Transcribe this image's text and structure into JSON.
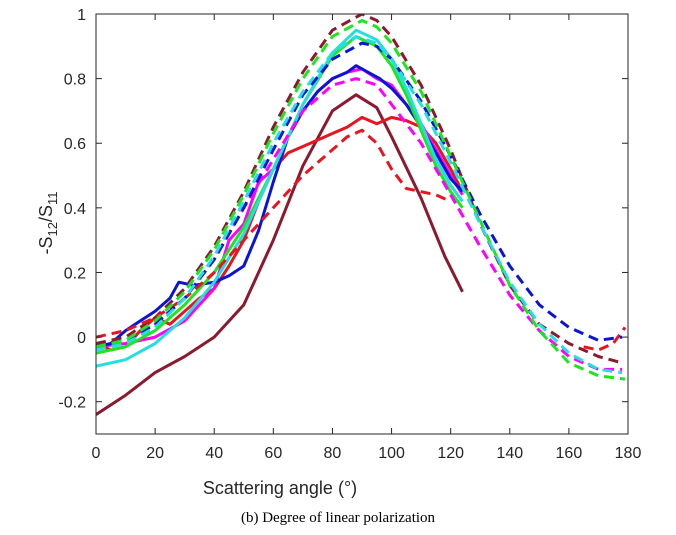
{
  "caption": "(b)    Degree of linear polarization",
  "chart_data": {
    "type": "line",
    "xlabel": "Scattering angle (°)",
    "ylabel": "-S12/S11",
    "xlim": [
      0,
      180
    ],
    "ylim": [
      -0.3,
      1.0
    ],
    "xticks": [
      0,
      20,
      40,
      60,
      80,
      100,
      120,
      140,
      160,
      180
    ],
    "yticks": [
      -0.2,
      0,
      0.2,
      0.4,
      0.6,
      0.8,
      1
    ],
    "grid": false,
    "series": [
      {
        "color": "#8b1a2e",
        "dash": false,
        "x": [
          0,
          10,
          20,
          30,
          40,
          50,
          60,
          70,
          80,
          88,
          95,
          100,
          110,
          118,
          124
        ],
        "y": [
          -0.24,
          -0.18,
          -0.11,
          -0.06,
          0.0,
          0.1,
          0.3,
          0.53,
          0.7,
          0.75,
          0.71,
          0.62,
          0.43,
          0.25,
          0.14
        ]
      },
      {
        "color": "#e8141e",
        "dash": false,
        "x": [
          0,
          5,
          10,
          15,
          20,
          25,
          30,
          35,
          40,
          45,
          50,
          55,
          60,
          65,
          70,
          75,
          80,
          85,
          90,
          95,
          100,
          105,
          110,
          115,
          120,
          124
        ],
        "y": [
          -0.02,
          -0.04,
          -0.03,
          0.02,
          0.06,
          0.04,
          0.08,
          0.12,
          0.15,
          0.22,
          0.3,
          0.42,
          0.52,
          0.57,
          0.59,
          0.61,
          0.63,
          0.65,
          0.68,
          0.66,
          0.68,
          0.67,
          0.65,
          0.6,
          0.52,
          0.45
        ]
      },
      {
        "color": "#ff00ff",
        "dash": false,
        "x": [
          0,
          10,
          20,
          30,
          40,
          45,
          50,
          55,
          60,
          65,
          70,
          75,
          80,
          85,
          90,
          95,
          100,
          105,
          110,
          115,
          120,
          124
        ],
        "y": [
          -0.03,
          -0.02,
          0.0,
          0.05,
          0.15,
          0.3,
          0.35,
          0.48,
          0.52,
          0.62,
          0.7,
          0.76,
          0.8,
          0.82,
          0.83,
          0.8,
          0.78,
          0.72,
          0.66,
          0.58,
          0.5,
          0.44
        ]
      },
      {
        "color": "#0a14d9",
        "dash": false,
        "x": [
          0,
          5,
          10,
          15,
          20,
          25,
          28,
          33,
          40,
          45,
          50,
          55,
          60,
          65,
          70,
          75,
          80,
          85,
          88,
          92,
          96,
          100,
          105,
          110,
          115,
          120,
          124
        ],
        "y": [
          -0.03,
          -0.02,
          0.02,
          0.05,
          0.08,
          0.12,
          0.17,
          0.16,
          0.17,
          0.19,
          0.22,
          0.33,
          0.48,
          0.62,
          0.7,
          0.76,
          0.8,
          0.82,
          0.84,
          0.82,
          0.8,
          0.77,
          0.72,
          0.65,
          0.57,
          0.49,
          0.45
        ]
      },
      {
        "color": "#1ee61e",
        "dash": false,
        "x": [
          0,
          10,
          20,
          30,
          40,
          50,
          60,
          70,
          80,
          88,
          95,
          100,
          105,
          110,
          115,
          120,
          124
        ],
        "y": [
          -0.05,
          -0.03,
          0.02,
          0.1,
          0.2,
          0.34,
          0.52,
          0.72,
          0.87,
          0.93,
          0.9,
          0.84,
          0.75,
          0.64,
          0.53,
          0.45,
          0.4
        ]
      },
      {
        "color": "#22e0e0",
        "dash": false,
        "x": [
          0,
          10,
          20,
          30,
          40,
          50,
          60,
          70,
          80,
          88,
          95,
          100,
          105,
          110,
          115,
          120,
          124
        ],
        "y": [
          -0.09,
          -0.07,
          -0.02,
          0.06,
          0.17,
          0.32,
          0.52,
          0.72,
          0.88,
          0.95,
          0.92,
          0.86,
          0.77,
          0.66,
          0.55,
          0.47,
          0.42
        ]
      },
      {
        "color": "#8b1a2e",
        "dash": true,
        "x": [
          0,
          10,
          20,
          30,
          40,
          50,
          60,
          70,
          80,
          90,
          95,
          100,
          110,
          120,
          130,
          140,
          150,
          160,
          170,
          178
        ],
        "y": [
          -0.02,
          0.0,
          0.06,
          0.15,
          0.28,
          0.45,
          0.65,
          0.82,
          0.95,
          1.0,
          0.98,
          0.93,
          0.78,
          0.58,
          0.35,
          0.16,
          0.04,
          -0.02,
          -0.06,
          -0.08
        ]
      },
      {
        "color": "#e8141e",
        "dash": true,
        "x": [
          0,
          10,
          20,
          30,
          40,
          50,
          60,
          70,
          80,
          85,
          90,
          95,
          100,
          105,
          110,
          115,
          120,
          160,
          165,
          170,
          175,
          179
        ],
        "y": [
          0.0,
          0.02,
          0.06,
          0.12,
          0.2,
          0.3,
          0.4,
          0.5,
          0.58,
          0.62,
          0.64,
          0.6,
          0.52,
          0.46,
          0.45,
          0.44,
          0.42,
          null,
          -0.03,
          -0.04,
          -0.02,
          0.03
        ]
      },
      {
        "color": "#ff00ff",
        "dash": true,
        "x": [
          0,
          10,
          20,
          30,
          40,
          50,
          60,
          70,
          80,
          88,
          95,
          100,
          110,
          120,
          130,
          140,
          150,
          160,
          170,
          178
        ],
        "y": [
          -0.03,
          -0.02,
          0.04,
          0.12,
          0.24,
          0.4,
          0.55,
          0.7,
          0.78,
          0.8,
          0.78,
          0.72,
          0.6,
          0.44,
          0.28,
          0.13,
          0.02,
          -0.06,
          -0.1,
          -0.1
        ]
      },
      {
        "color": "#0a14d9",
        "dash": true,
        "x": [
          0,
          10,
          20,
          30,
          40,
          50,
          60,
          70,
          80,
          90,
          95,
          100,
          110,
          120,
          130,
          140,
          150,
          160,
          170,
          178
        ],
        "y": [
          -0.03,
          -0.01,
          0.04,
          0.12,
          0.24,
          0.4,
          0.58,
          0.75,
          0.86,
          0.91,
          0.9,
          0.86,
          0.73,
          0.56,
          0.38,
          0.22,
          0.1,
          0.03,
          -0.01,
          0.0
        ]
      },
      {
        "color": "#1ee61e",
        "dash": true,
        "x": [
          0,
          10,
          20,
          30,
          40,
          50,
          60,
          70,
          80,
          90,
          95,
          100,
          110,
          120,
          130,
          140,
          150,
          160,
          170,
          179
        ],
        "y": [
          -0.03,
          -0.01,
          0.05,
          0.14,
          0.27,
          0.44,
          0.63,
          0.8,
          0.93,
          0.98,
          0.96,
          0.91,
          0.76,
          0.56,
          0.36,
          0.16,
          0.02,
          -0.08,
          -0.12,
          -0.13
        ]
      },
      {
        "color": "#22e0e0",
        "dash": true,
        "x": [
          0,
          10,
          20,
          30,
          40,
          50,
          60,
          70,
          80,
          88,
          95,
          100,
          110,
          120,
          130,
          140,
          150,
          160,
          170,
          178
        ],
        "y": [
          -0.04,
          -0.02,
          0.03,
          0.12,
          0.25,
          0.42,
          0.6,
          0.76,
          0.88,
          0.93,
          0.91,
          0.86,
          0.72,
          0.54,
          0.35,
          0.17,
          0.04,
          -0.05,
          -0.1,
          -0.11
        ]
      }
    ]
  }
}
